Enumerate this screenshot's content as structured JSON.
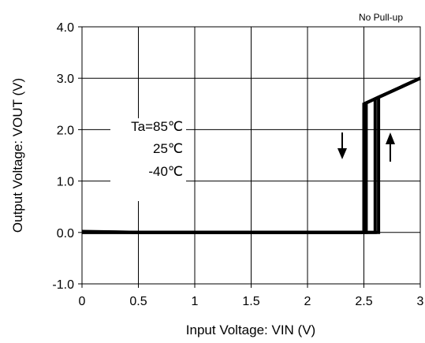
{
  "chart_data": {
    "type": "line",
    "note": "No Pull-up",
    "xlabel": "Input Voltage: VIN (V)",
    "ylabel": "Output Voltage: VOUT (V)",
    "xlim": [
      0,
      3
    ],
    "ylim": [
      -1,
      4
    ],
    "x_ticks": [
      "0",
      "0.5",
      "1",
      "1.5",
      "2",
      "2.5",
      "3"
    ],
    "y_ticks": [
      "4.0",
      "3.0",
      "2.0",
      "1.0",
      "0.0",
      "-1.0"
    ],
    "grid": true,
    "annotations": [
      "Ta=85℃",
      "25℃",
      "-40℃"
    ],
    "arrows": [
      "falling",
      "rising"
    ],
    "series": [
      {
        "x": [
          0,
          0.3,
          0.5,
          2.46,
          2.5,
          2.5,
          2.56,
          2.62,
          2.7,
          3.0
        ],
        "y": [
          0.02,
          0.01,
          0.0,
          0.0,
          0.0,
          2.5,
          2.56,
          2.62,
          2.7,
          3.0
        ]
      },
      {
        "x": [
          0,
          0.5,
          2.49,
          2.52,
          2.52,
          2.58,
          2.64,
          2.7,
          3.0
        ],
        "y": [
          0.01,
          0.0,
          0.0,
          0.0,
          2.52,
          2.58,
          2.64,
          2.7,
          3.0
        ]
      },
      {
        "x": [
          0,
          0.5,
          2.5,
          2.6,
          2.6,
          2.65,
          2.7,
          3.0
        ],
        "y": [
          0.0,
          0.0,
          0.0,
          0.0,
          2.6,
          2.65,
          2.7,
          3.0
        ]
      },
      {
        "x": [
          0,
          0.5,
          2.52,
          2.63,
          2.63,
          2.66,
          2.7,
          3.0
        ],
        "y": [
          0.0,
          0.0,
          0.0,
          0.0,
          2.63,
          2.66,
          2.7,
          3.0
        ]
      }
    ]
  }
}
